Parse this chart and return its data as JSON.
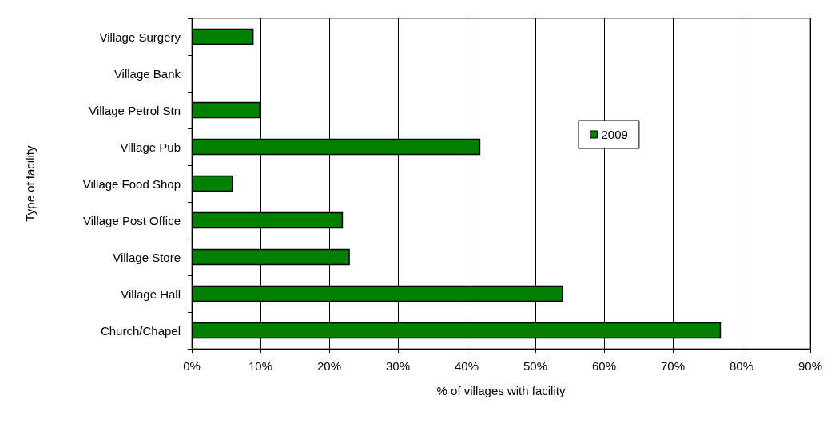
{
  "chart_data": {
    "type": "bar",
    "orientation": "horizontal",
    "xlabel": "% of villages with facility",
    "ylabel": "Type of facility",
    "categories": [
      "Village Surgery",
      "Village Bank",
      "Village Petrol Stn",
      "Village Pub",
      "Village Food Shop",
      "Village Post Office",
      "Village Store",
      "Village Hall",
      "Church/Chapel"
    ],
    "series": [
      {
        "name": "2009",
        "color": "#008000",
        "values": [
          9,
          0,
          10,
          42,
          6,
          22,
          23,
          54,
          77
        ]
      }
    ],
    "xlim": [
      0,
      90
    ],
    "xticks": [
      {
        "value": 0,
        "label": "0%"
      },
      {
        "value": 10,
        "label": "10%"
      },
      {
        "value": 20,
        "label": "20%"
      },
      {
        "value": 30,
        "label": "30%"
      },
      {
        "value": 40,
        "label": "40%"
      },
      {
        "value": 50,
        "label": "50%"
      },
      {
        "value": 60,
        "label": "60%"
      },
      {
        "value": 70,
        "label": "70%"
      },
      {
        "value": 80,
        "label": "80%"
      },
      {
        "value": 90,
        "label": "90%"
      }
    ],
    "grid": "x",
    "legend": "top right"
  }
}
